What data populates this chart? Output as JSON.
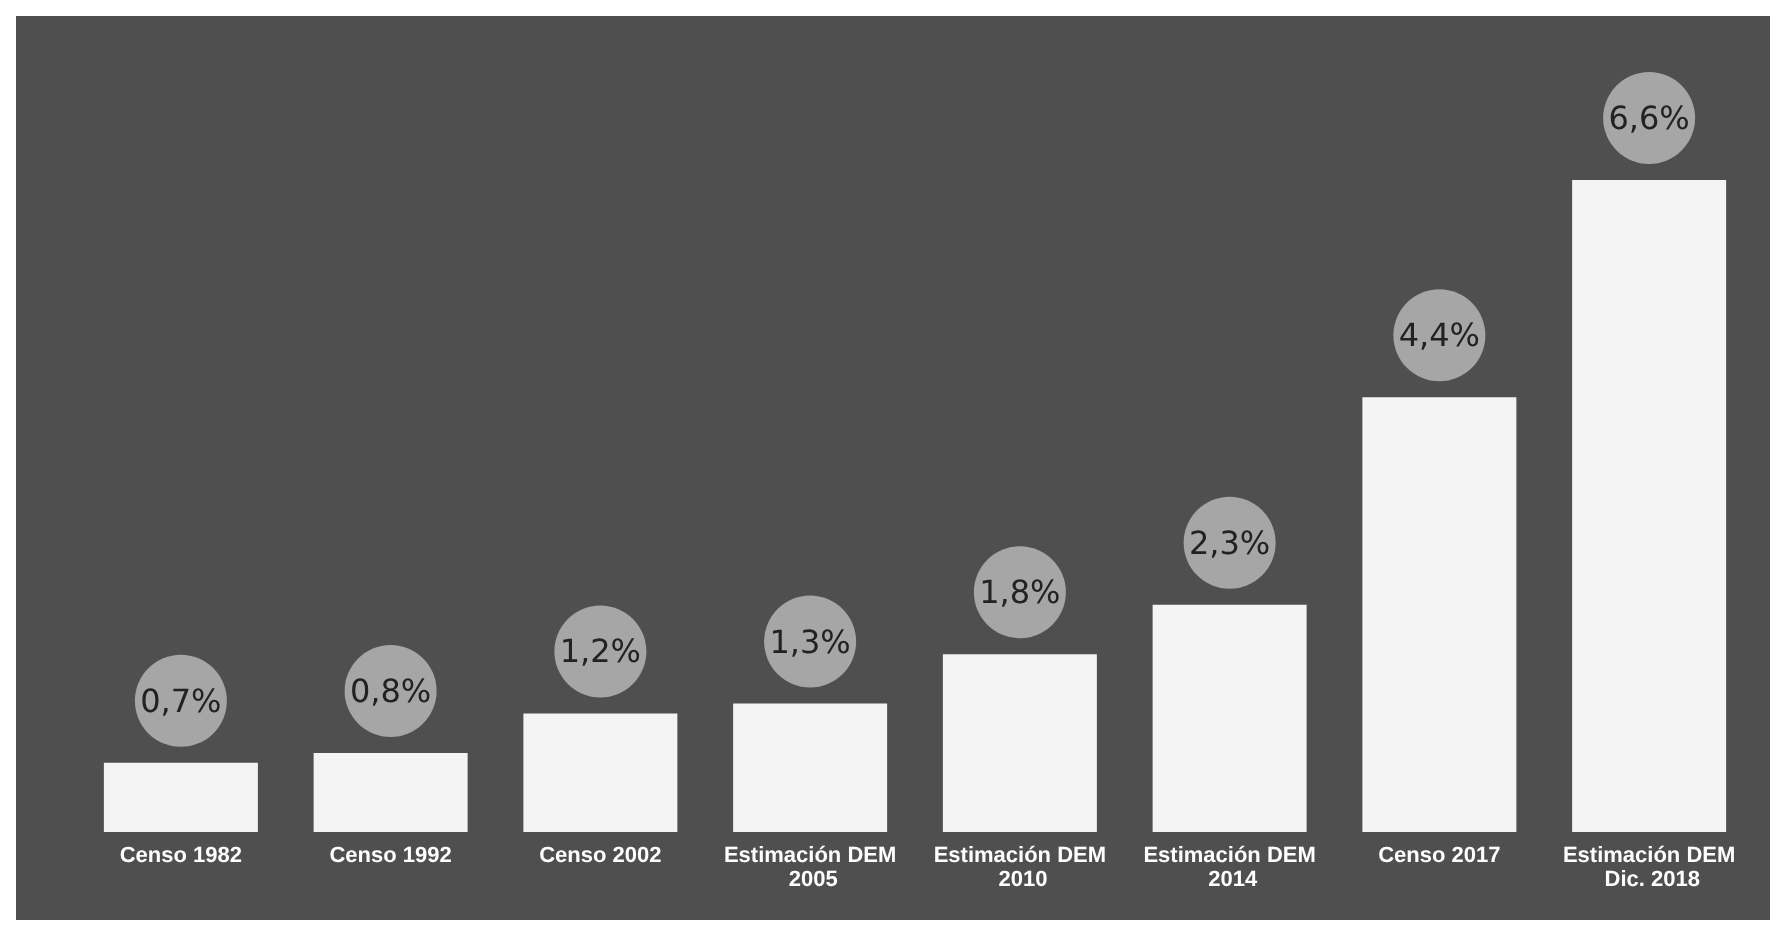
{
  "chart_data": {
    "type": "bar",
    "categories": [
      "Censo 1982",
      "Censo 1992",
      "Censo 2002",
      "Estimación DEM 2005",
      "Estimación DEM 2010",
      "Estimación DEM 2014",
      "Censo 2017",
      "Estimación DEM Dic. 2018"
    ],
    "values": [
      0.7,
      0.8,
      1.2,
      1.3,
      1.8,
      2.3,
      4.4,
      6.6
    ],
    "value_labels": [
      "0,7%",
      "0,8%",
      "1,2%",
      "1,3%",
      "1,8%",
      "2,3%",
      "4,4%",
      "6,6%"
    ],
    "color": "#f4f4f4"
  }
}
